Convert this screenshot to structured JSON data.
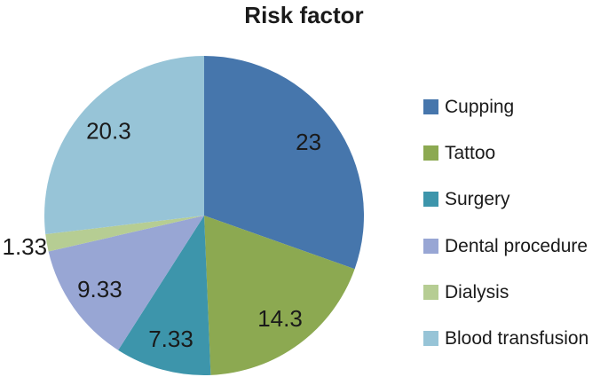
{
  "chart_data": {
    "type": "pie",
    "title": "Risk factor",
    "categories": [
      "Cupping",
      "Tattoo",
      "Surgery",
      "Dental procedure",
      "Dialysis",
      "Blood transfusion"
    ],
    "values": [
      23,
      14.3,
      7.33,
      9.33,
      1.33,
      20.3
    ],
    "labels": [
      "23",
      "14.3",
      "7.33",
      "9.33",
      "1.33",
      "20.3"
    ],
    "colors": [
      "#4676AC",
      "#8CA951",
      "#3D95AB",
      "#98A6D4",
      "#B6CD93",
      "#97C4D7"
    ],
    "start_angle_deg": 0,
    "direction": "clockwise",
    "legend_position": "right",
    "label_color": "#1a1a1a",
    "title_color": "#1a1a1a",
    "background": "#ffffff"
  }
}
